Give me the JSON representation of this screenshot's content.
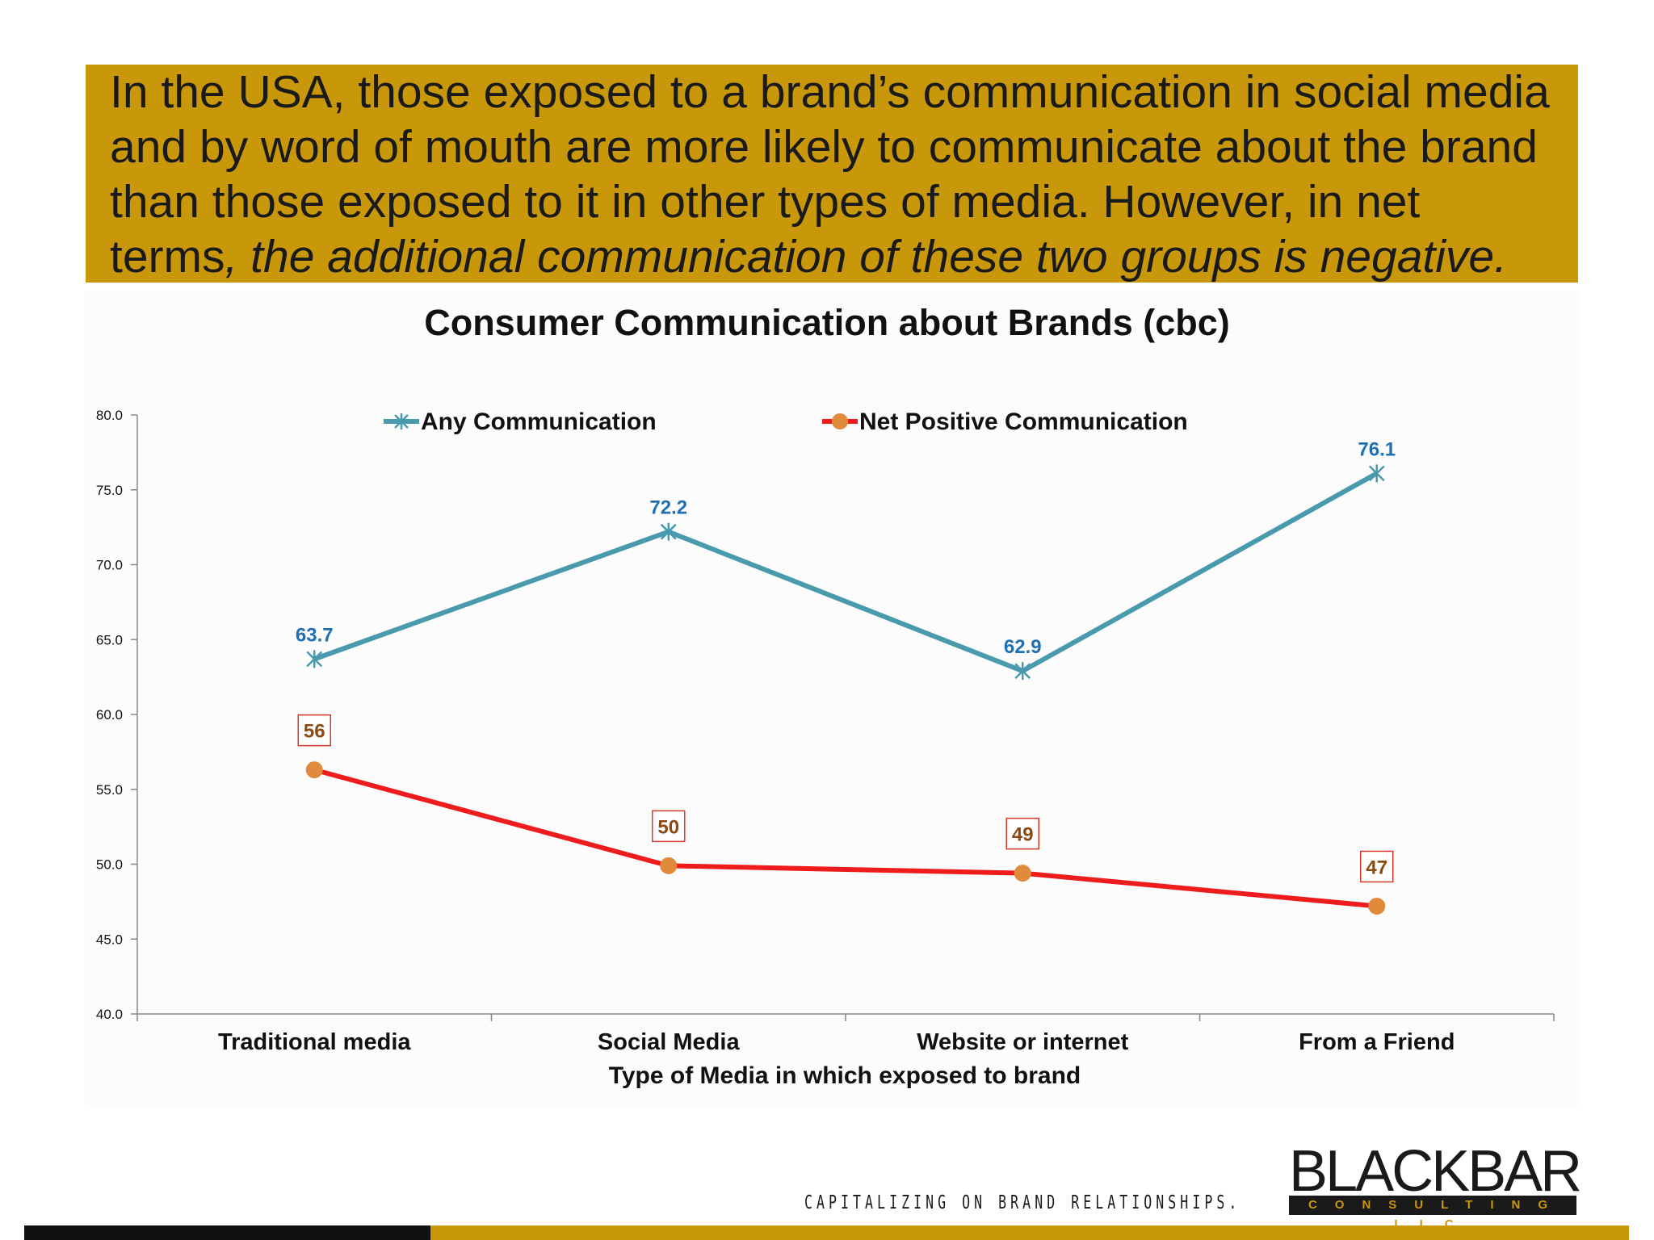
{
  "headline": {
    "text_plain": "In the USA, those exposed to a brand’s communication in social media and by word of mouth are more likely to communicate about the brand than those exposed to it in other types of media. However, in net terms",
    "text_italic": ", the additional communication of these two groups is negative."
  },
  "chart_data": {
    "type": "line",
    "title": "Consumer Communication about Brands (cbc)",
    "xlabel": "Type of Media in which exposed to brand",
    "ylabel": "",
    "categories": [
      "Traditional media",
      "Social Media",
      "Website or internet",
      "From a Friend"
    ],
    "ylim": [
      40.0,
      80.0
    ],
    "yticks": [
      "40.0",
      "45.0",
      "50.0",
      "55.0",
      "60.0",
      "65.0",
      "70.0",
      "75.0",
      "80.0"
    ],
    "legend_position": "top",
    "series": [
      {
        "name": "Any Communication",
        "values": [
          63.7,
          72.2,
          62.9,
          76.1
        ],
        "labels": [
          "63.7",
          "72.2",
          "62.9",
          "76.1"
        ],
        "color": "#4a9aad",
        "label_color": "#1f6fb2",
        "marker": "asterisk"
      },
      {
        "name": "Net Positive Communication",
        "values": [
          56.3,
          49.9,
          49.4,
          47.2
        ],
        "labels": [
          "56",
          "50",
          "49",
          "47"
        ],
        "color": "#ee1c1c",
        "label_color": "#8b4a12",
        "marker": "circle",
        "marker_color": "#e08a3c"
      }
    ]
  },
  "footer": {
    "tagline": "CAPITALIZING ON BRAND RELATIONSHIPS.",
    "logo_word": "BLACKBAR",
    "logo_sub": "CONSULTING LLC"
  }
}
